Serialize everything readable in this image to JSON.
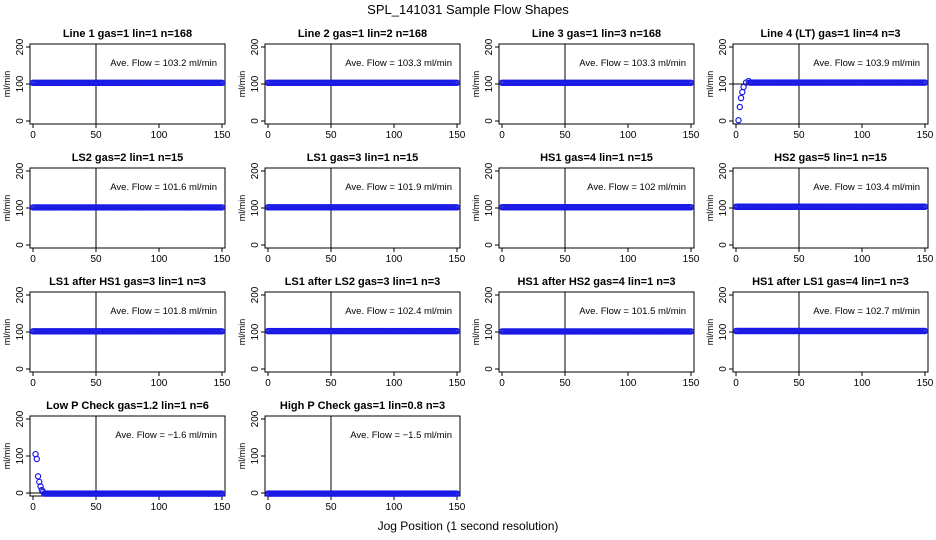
{
  "figure": {
    "title": "SPL_141031  Sample Flow Shapes",
    "xlabel": "Jog Position (1 second resolution)"
  },
  "colors": {
    "points": "#1a1ae6",
    "axis": "#000000",
    "refline": "#000000"
  },
  "chart_data": [
    {
      "type": "scatter",
      "title": "Line 1 gas=1 lin=1 n=168",
      "annotation": "Ave. Flow = 103.2  ml/min",
      "ylabel": "ml/min",
      "xlim": [
        0,
        150
      ],
      "ylim": [
        0,
        200
      ],
      "xticks": [
        0,
        50,
        100,
        150
      ],
      "yticks": [
        0,
        100,
        200
      ],
      "vline": 50,
      "hline": 100,
      "flow": 103.2,
      "shape": "flat"
    },
    {
      "type": "scatter",
      "title": "Line 2 gas=1 lin=2 n=168",
      "annotation": "Ave. Flow = 103.3  ml/min",
      "ylabel": "ml/min",
      "xlim": [
        0,
        150
      ],
      "ylim": [
        0,
        200
      ],
      "xticks": [
        0,
        50,
        100,
        150
      ],
      "yticks": [
        0,
        100,
        200
      ],
      "vline": 50,
      "hline": 100,
      "flow": 103.3,
      "shape": "flat"
    },
    {
      "type": "scatter",
      "title": "Line 3 gas=1 lin=3 n=168",
      "annotation": "Ave. Flow = 103.3  ml/min",
      "ylabel": "ml/min",
      "xlim": [
        0,
        150
      ],
      "ylim": [
        0,
        200
      ],
      "xticks": [
        0,
        50,
        100,
        150
      ],
      "yticks": [
        0,
        100,
        200
      ],
      "vline": 50,
      "hline": 100,
      "flow": 103.3,
      "shape": "flat"
    },
    {
      "type": "scatter",
      "title": "Line 4 (LT) gas=1 lin=4 n=3",
      "annotation": "Ave. Flow = 103.9  ml/min",
      "ylabel": "ml/min",
      "xlim": [
        0,
        150
      ],
      "ylim": [
        0,
        200
      ],
      "xticks": [
        0,
        50,
        100,
        150
      ],
      "yticks": [
        0,
        100,
        200
      ],
      "vline": 50,
      "hline": 100,
      "flow": 103.9,
      "shape": "rise",
      "start_points": [
        [
          2,
          2
        ],
        [
          3,
          38
        ],
        [
          4,
          62
        ],
        [
          5,
          78
        ],
        [
          6,
          92
        ],
        [
          8,
          104
        ],
        [
          10,
          108
        ]
      ]
    },
    {
      "type": "scatter",
      "title": "LS2 gas=2 lin=1 n=15",
      "annotation": "Ave. Flow = 101.6  ml/min",
      "ylabel": "ml/min",
      "xlim": [
        0,
        150
      ],
      "ylim": [
        0,
        200
      ],
      "xticks": [
        0,
        50,
        100,
        150
      ],
      "yticks": [
        0,
        100,
        200
      ],
      "vline": 50,
      "hline": 100,
      "flow": 101.6,
      "shape": "flat"
    },
    {
      "type": "scatter",
      "title": "LS1 gas=3 lin=1 n=15",
      "annotation": "Ave. Flow = 101.9  ml/min",
      "ylabel": "ml/min",
      "xlim": [
        0,
        150
      ],
      "ylim": [
        0,
        200
      ],
      "xticks": [
        0,
        50,
        100,
        150
      ],
      "yticks": [
        0,
        100,
        200
      ],
      "vline": 50,
      "hline": 100,
      "flow": 101.9,
      "shape": "flat"
    },
    {
      "type": "scatter",
      "title": "HS1 gas=4 lin=1 n=15",
      "annotation": "Ave. Flow = 102  ml/min",
      "ylabel": "ml/min",
      "xlim": [
        0,
        150
      ],
      "ylim": [
        0,
        200
      ],
      "xticks": [
        0,
        50,
        100,
        150
      ],
      "yticks": [
        0,
        100,
        200
      ],
      "vline": 50,
      "hline": 100,
      "flow": 102,
      "shape": "flat"
    },
    {
      "type": "scatter",
      "title": "HS2 gas=5 lin=1 n=15",
      "annotation": "Ave. Flow = 103.4  ml/min",
      "ylabel": "ml/min",
      "xlim": [
        0,
        150
      ],
      "ylim": [
        0,
        200
      ],
      "xticks": [
        0,
        50,
        100,
        150
      ],
      "yticks": [
        0,
        100,
        200
      ],
      "vline": 50,
      "hline": 100,
      "flow": 103.4,
      "shape": "flat"
    },
    {
      "type": "scatter",
      "title": "LS1 after HS1 gas=3 lin=1 n=3",
      "annotation": "Ave. Flow = 101.8  ml/min",
      "ylabel": "ml/min",
      "xlim": [
        0,
        150
      ],
      "ylim": [
        0,
        200
      ],
      "xticks": [
        0,
        50,
        100,
        150
      ],
      "yticks": [
        0,
        100,
        200
      ],
      "vline": 50,
      "hline": 100,
      "flow": 101.8,
      "shape": "flat"
    },
    {
      "type": "scatter",
      "title": "LS1 after LS2 gas=3 lin=1 n=3",
      "annotation": "Ave. Flow = 102.4  ml/min",
      "ylabel": "ml/min",
      "xlim": [
        0,
        150
      ],
      "ylim": [
        0,
        200
      ],
      "xticks": [
        0,
        50,
        100,
        150
      ],
      "yticks": [
        0,
        100,
        200
      ],
      "vline": 50,
      "hline": 100,
      "flow": 102.4,
      "shape": "flat"
    },
    {
      "type": "scatter",
      "title": "HS1 after HS2 gas=4 lin=1 n=3",
      "annotation": "Ave. Flow = 101.5  ml/min",
      "ylabel": "ml/min",
      "xlim": [
        0,
        150
      ],
      "ylim": [
        0,
        200
      ],
      "xticks": [
        0,
        50,
        100,
        150
      ],
      "yticks": [
        0,
        100,
        200
      ],
      "vline": 50,
      "hline": 100,
      "flow": 101.5,
      "shape": "flat"
    },
    {
      "type": "scatter",
      "title": "HS1 after LS1 gas=4 lin=1 n=3",
      "annotation": "Ave. Flow = 102.7  ml/min",
      "ylabel": "ml/min",
      "xlim": [
        0,
        150
      ],
      "ylim": [
        0,
        200
      ],
      "xticks": [
        0,
        50,
        100,
        150
      ],
      "yticks": [
        0,
        100,
        200
      ],
      "vline": 50,
      "hline": 100,
      "flow": 102.7,
      "shape": "flat"
    },
    {
      "type": "scatter",
      "title": "Low P Check gas=1.2 lin=1 n=6",
      "annotation": "Ave. Flow = −1.6  ml/min",
      "ylabel": "ml/min",
      "xlim": [
        0,
        150
      ],
      "ylim": [
        0,
        200
      ],
      "xticks": [
        0,
        50,
        100,
        150
      ],
      "yticks": [
        0,
        100,
        200
      ],
      "vline": 50,
      "hline": 0,
      "flow": -1.6,
      "shape": "decay",
      "start_points": [
        [
          2,
          105
        ],
        [
          3,
          92
        ],
        [
          4,
          45
        ],
        [
          5,
          30
        ],
        [
          6,
          18
        ],
        [
          7,
          8
        ],
        [
          8,
          3
        ]
      ]
    },
    {
      "type": "scatter",
      "title": "High P Check gas=1 lin=0.8 n=3",
      "annotation": "Ave. Flow = −1.5  ml/min",
      "ylabel": "ml/min",
      "xlim": [
        0,
        150
      ],
      "ylim": [
        0,
        200
      ],
      "xticks": [
        0,
        50,
        100,
        150
      ],
      "yticks": [
        0,
        100,
        200
      ],
      "vline": 50,
      "hline": 0,
      "flow": -1.5,
      "shape": "flat"
    }
  ]
}
